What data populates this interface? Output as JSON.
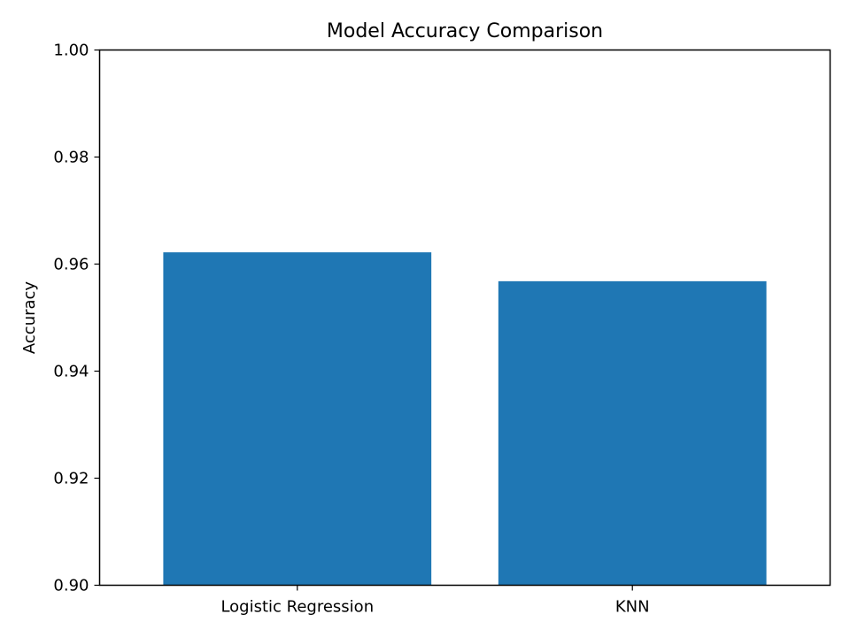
{
  "chart_data": {
    "type": "bar",
    "title": "Model Accuracy Comparison",
    "xlabel": "",
    "ylabel": "Accuracy",
    "categories": [
      "Logistic Regression",
      "KNN"
    ],
    "values": [
      0.9622,
      0.9568
    ],
    "ylim": [
      0.9,
      1.0
    ],
    "yticks": [
      0.9,
      0.92,
      0.94,
      0.96,
      0.98,
      1.0
    ],
    "ytick_labels": [
      "0.90",
      "0.92",
      "0.94",
      "0.96",
      "0.98",
      "1.00"
    ],
    "grid": false,
    "legend": "none",
    "bar_color": "#1f77b4"
  }
}
